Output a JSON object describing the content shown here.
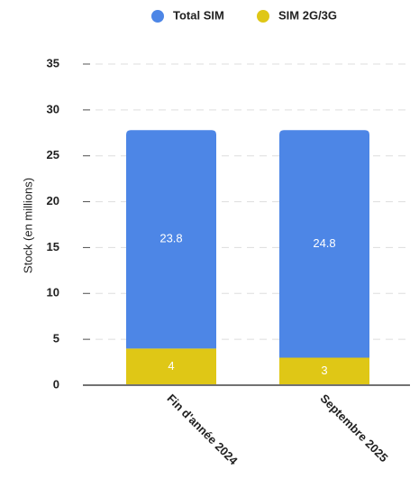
{
  "chart_data": {
    "type": "stacked_bar",
    "y_label": "Stock (en millions)",
    "categories": [
      "Fin d'année 2024",
      "Septembre 2025"
    ],
    "series": [
      {
        "name": "Total SIM",
        "color": "#4d86e6",
        "values": [
          23.8,
          24.8
        ]
      },
      {
        "name": "SIM 2G/3G",
        "color": "#dfc716",
        "values": [
          4,
          3
        ]
      }
    ],
    "ylim": [
      0,
      35
    ],
    "yticks": [
      0,
      5,
      10,
      15,
      20,
      25,
      30,
      35
    ],
    "grid": true
  }
}
